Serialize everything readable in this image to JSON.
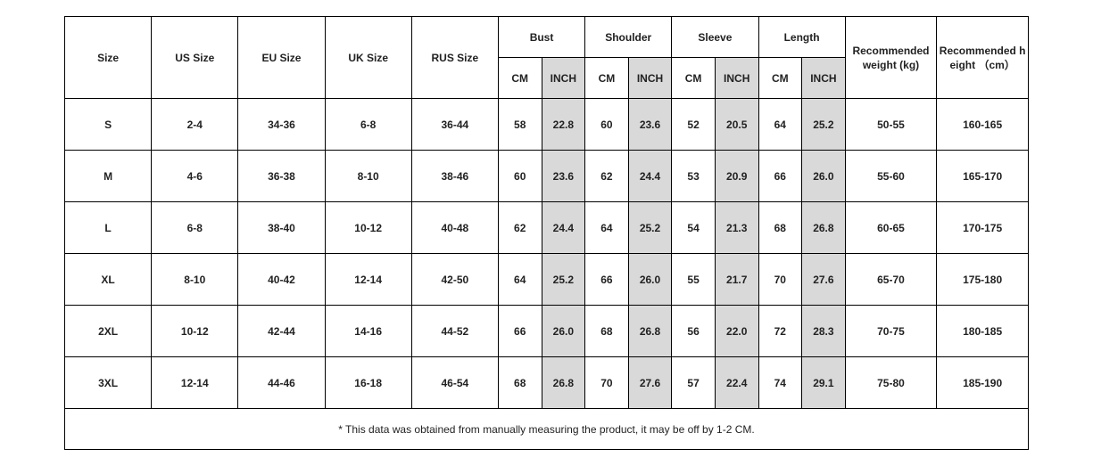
{
  "table": {
    "columns": [
      "Size",
      "US Size",
      "EU Size",
      "UK Size",
      "RUS Size"
    ],
    "groups": [
      "Bust",
      "Shoulder",
      "Sleeve",
      "Length"
    ],
    "subheaders": [
      "CM",
      "INCH",
      "CM",
      "INCH",
      "CM",
      "INCH",
      "CM",
      "INCH"
    ],
    "extra_columns": [
      "Recommended weight (kg)",
      "Recommended height （cm）"
    ],
    "rows": [
      [
        "S",
        "2-4",
        "34-36",
        "6-8",
        "36-44",
        "58",
        "22.8",
        "60",
        "23.6",
        "52",
        "20.5",
        "64",
        "25.2",
        "50-55",
        "160-165"
      ],
      [
        "M",
        "4-6",
        "36-38",
        "8-10",
        "38-46",
        "60",
        "23.6",
        "62",
        "24.4",
        "53",
        "20.9",
        "66",
        "26.0",
        "55-60",
        "165-170"
      ],
      [
        "L",
        "6-8",
        "38-40",
        "10-12",
        "40-48",
        "62",
        "24.4",
        "64",
        "25.2",
        "54",
        "21.3",
        "68",
        "26.8",
        "60-65",
        "170-175"
      ],
      [
        "XL",
        "8-10",
        "40-42",
        "12-14",
        "42-50",
        "64",
        "25.2",
        "66",
        "26.0",
        "55",
        "21.7",
        "70",
        "27.6",
        "65-70",
        "175-180"
      ],
      [
        "2XL",
        "10-12",
        "42-44",
        "14-16",
        "44-52",
        "66",
        "26.0",
        "68",
        "26.8",
        "56",
        "22.0",
        "72",
        "28.3",
        "70-75",
        "180-185"
      ],
      [
        "3XL",
        "12-14",
        "44-46",
        "16-18",
        "46-54",
        "68",
        "26.8",
        "70",
        "27.6",
        "57",
        "22.4",
        "74",
        "29.1",
        "75-80",
        "185-190"
      ]
    ],
    "note": "* This data was obtained from manually measuring the product, it may be off by 1-2 CM."
  }
}
